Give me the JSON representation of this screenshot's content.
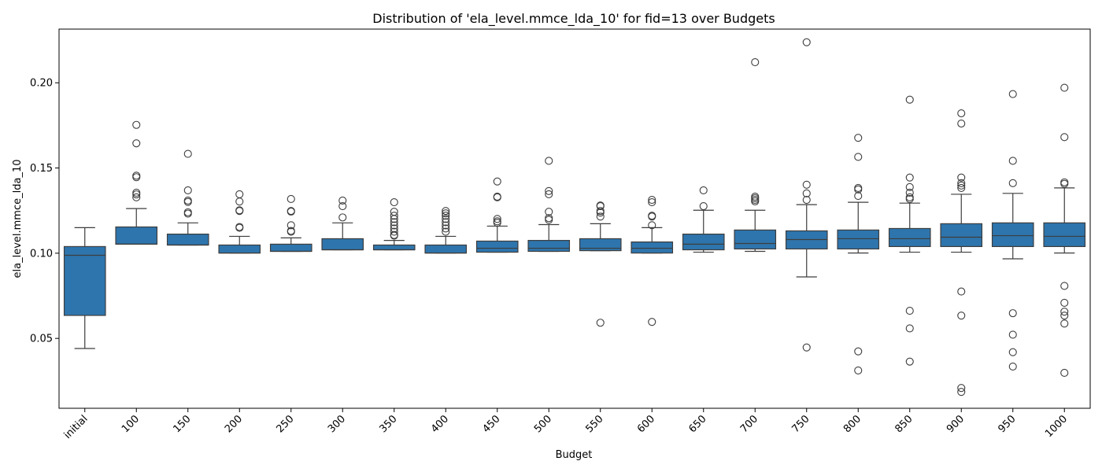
{
  "chart_data": {
    "type": "box",
    "title": "Distribution of 'ela_level.mmce_lda_10' for fid=13 over Budgets",
    "xlabel": "Budget",
    "ylabel": "ela_level.mmce_lda_10",
    "ylim": [
      0.009,
      0.2315
    ],
    "yticks": [
      0.05,
      0.1,
      0.15,
      0.2
    ],
    "ytick_labels": [
      "0.05",
      "0.10",
      "0.15",
      "0.20"
    ],
    "grid": false,
    "box_color": "#2e75ad",
    "categories": [
      "initial",
      "100",
      "150",
      "200",
      "250",
      "300",
      "350",
      "400",
      "450",
      "500",
      "550",
      "600",
      "650",
      "700",
      "750",
      "800",
      "850",
      "900",
      "950",
      "1000"
    ],
    "boxes": [
      {
        "lower_whisker": 0.0441,
        "q1": 0.0635,
        "median": 0.0988,
        "q3": 0.1039,
        "upper_whisker": 0.115,
        "outliers": []
      },
      {
        "lower_whisker": 0.1053,
        "q1": 0.1053,
        "median": 0.1053,
        "q3": 0.1154,
        "upper_whisker": 0.1262,
        "outliers": [
          0.1753,
          0.1645,
          0.1455,
          0.1446,
          0.1355,
          0.1345,
          0.1328
        ]
      },
      {
        "lower_whisker": 0.1048,
        "q1": 0.1048,
        "median": 0.1048,
        "q3": 0.1112,
        "upper_whisker": 0.1178,
        "outliers": [
          0.1583,
          0.1369,
          0.1309,
          0.1301,
          0.124,
          0.1232
        ]
      },
      {
        "lower_whisker": 0.1001,
        "q1": 0.1001,
        "median": 0.1001,
        "q3": 0.1048,
        "upper_whisker": 0.1099,
        "outliers": [
          0.1346,
          0.1303,
          0.1252,
          0.1248,
          0.1154,
          0.1149
        ]
      },
      {
        "lower_whisker": 0.1011,
        "q1": 0.1011,
        "median": 0.1011,
        "q3": 0.1053,
        "upper_whisker": 0.109,
        "outliers": [
          0.1318,
          0.1248,
          0.1244,
          0.1164,
          0.1131,
          0.1126
        ]
      },
      {
        "lower_whisker": 0.102,
        "q1": 0.102,
        "median": 0.102,
        "q3": 0.1085,
        "upper_whisker": 0.1178,
        "outliers": [
          0.1309,
          0.1276,
          0.121
        ]
      },
      {
        "lower_whisker": 0.102,
        "q1": 0.102,
        "median": 0.102,
        "q3": 0.1048,
        "upper_whisker": 0.1075,
        "outliers": [
          0.1299,
          0.1243,
          0.122,
          0.1201,
          0.1182,
          0.1163,
          0.1145,
          0.1126,
          0.1107,
          0.1103
        ]
      },
      {
        "lower_whisker": 0.1001,
        "q1": 0.1001,
        "median": 0.1001,
        "q3": 0.1048,
        "upper_whisker": 0.1099,
        "outliers": [
          0.1248,
          0.1234,
          0.122,
          0.1201,
          0.1182,
          0.1163,
          0.1145,
          0.1126
        ]
      },
      {
        "lower_whisker": 0.1006,
        "q1": 0.1006,
        "median": 0.1029,
        "q3": 0.1071,
        "upper_whisker": 0.1159,
        "outliers": [
          0.1421,
          0.1332,
          0.1328,
          0.1201,
          0.1187,
          0.1178
        ]
      },
      {
        "lower_whisker": 0.1011,
        "q1": 0.1011,
        "median": 0.1029,
        "q3": 0.1075,
        "upper_whisker": 0.1168,
        "outliers": [
          0.1542,
          0.1365,
          0.1346,
          0.1243,
          0.1206,
          0.1196
        ]
      },
      {
        "lower_whisker": 0.1015,
        "q1": 0.1015,
        "median": 0.1029,
        "q3": 0.1085,
        "upper_whisker": 0.1173,
        "outliers": [
          0.128,
          0.1276,
          0.1248,
          0.1238,
          0.1215,
          0.0592
        ]
      },
      {
        "lower_whisker": 0.1001,
        "q1": 0.1001,
        "median": 0.1029,
        "q3": 0.1066,
        "upper_whisker": 0.115,
        "outliers": [
          0.1313,
          0.1299,
          0.122,
          0.1215,
          0.1164,
          0.0597
        ]
      },
      {
        "lower_whisker": 0.1006,
        "q1": 0.102,
        "median": 0.1053,
        "q3": 0.1112,
        "upper_whisker": 0.1252,
        "outliers": [
          0.1369,
          0.1276
        ]
      },
      {
        "lower_whisker": 0.1011,
        "q1": 0.1025,
        "median": 0.1057,
        "q3": 0.1136,
        "upper_whisker": 0.1252,
        "outliers": [
          0.2121,
          0.1332,
          0.1323,
          0.1313,
          0.1304
        ]
      },
      {
        "lower_whisker": 0.0861,
        "q1": 0.1025,
        "median": 0.108,
        "q3": 0.1131,
        "upper_whisker": 0.1285,
        "outliers": [
          0.2238,
          0.1402,
          0.1351,
          0.1313,
          0.0447
        ]
      },
      {
        "lower_whisker": 0.1001,
        "q1": 0.1025,
        "median": 0.1085,
        "q3": 0.1136,
        "upper_whisker": 0.1299,
        "outliers": [
          0.1677,
          0.1565,
          0.1383,
          0.1374,
          0.1336,
          0.0424,
          0.0312
        ]
      },
      {
        "lower_whisker": 0.1006,
        "q1": 0.1039,
        "median": 0.1085,
        "q3": 0.1145,
        "upper_whisker": 0.1294,
        "outliers": [
          0.1901,
          0.1444,
          0.1388,
          0.1355,
          0.1328,
          0.1318,
          0.0662,
          0.0559,
          0.0364
        ]
      },
      {
        "lower_whisker": 0.1006,
        "q1": 0.1039,
        "median": 0.1094,
        "q3": 0.1173,
        "upper_whisker": 0.1346,
        "outliers": [
          0.1821,
          0.1761,
          0.1444,
          0.1411,
          0.1397,
          0.1383,
          0.0775,
          0.0634,
          0.0209,
          0.0186
        ]
      },
      {
        "lower_whisker": 0.0967,
        "q1": 0.1039,
        "median": 0.1103,
        "q3": 0.1178,
        "upper_whisker": 0.1351,
        "outliers": [
          0.1934,
          0.1542,
          0.1411,
          0.0648,
          0.0522,
          0.0419,
          0.0335
        ]
      },
      {
        "lower_whisker": 0.1001,
        "q1": 0.1039,
        "median": 0.1099,
        "q3": 0.1178,
        "upper_whisker": 0.1383,
        "outliers": [
          0.1971,
          0.1681,
          0.1416,
          0.1407,
          0.0808,
          0.0709,
          0.0657,
          0.0634,
          0.0587,
          0.0298
        ]
      }
    ]
  }
}
